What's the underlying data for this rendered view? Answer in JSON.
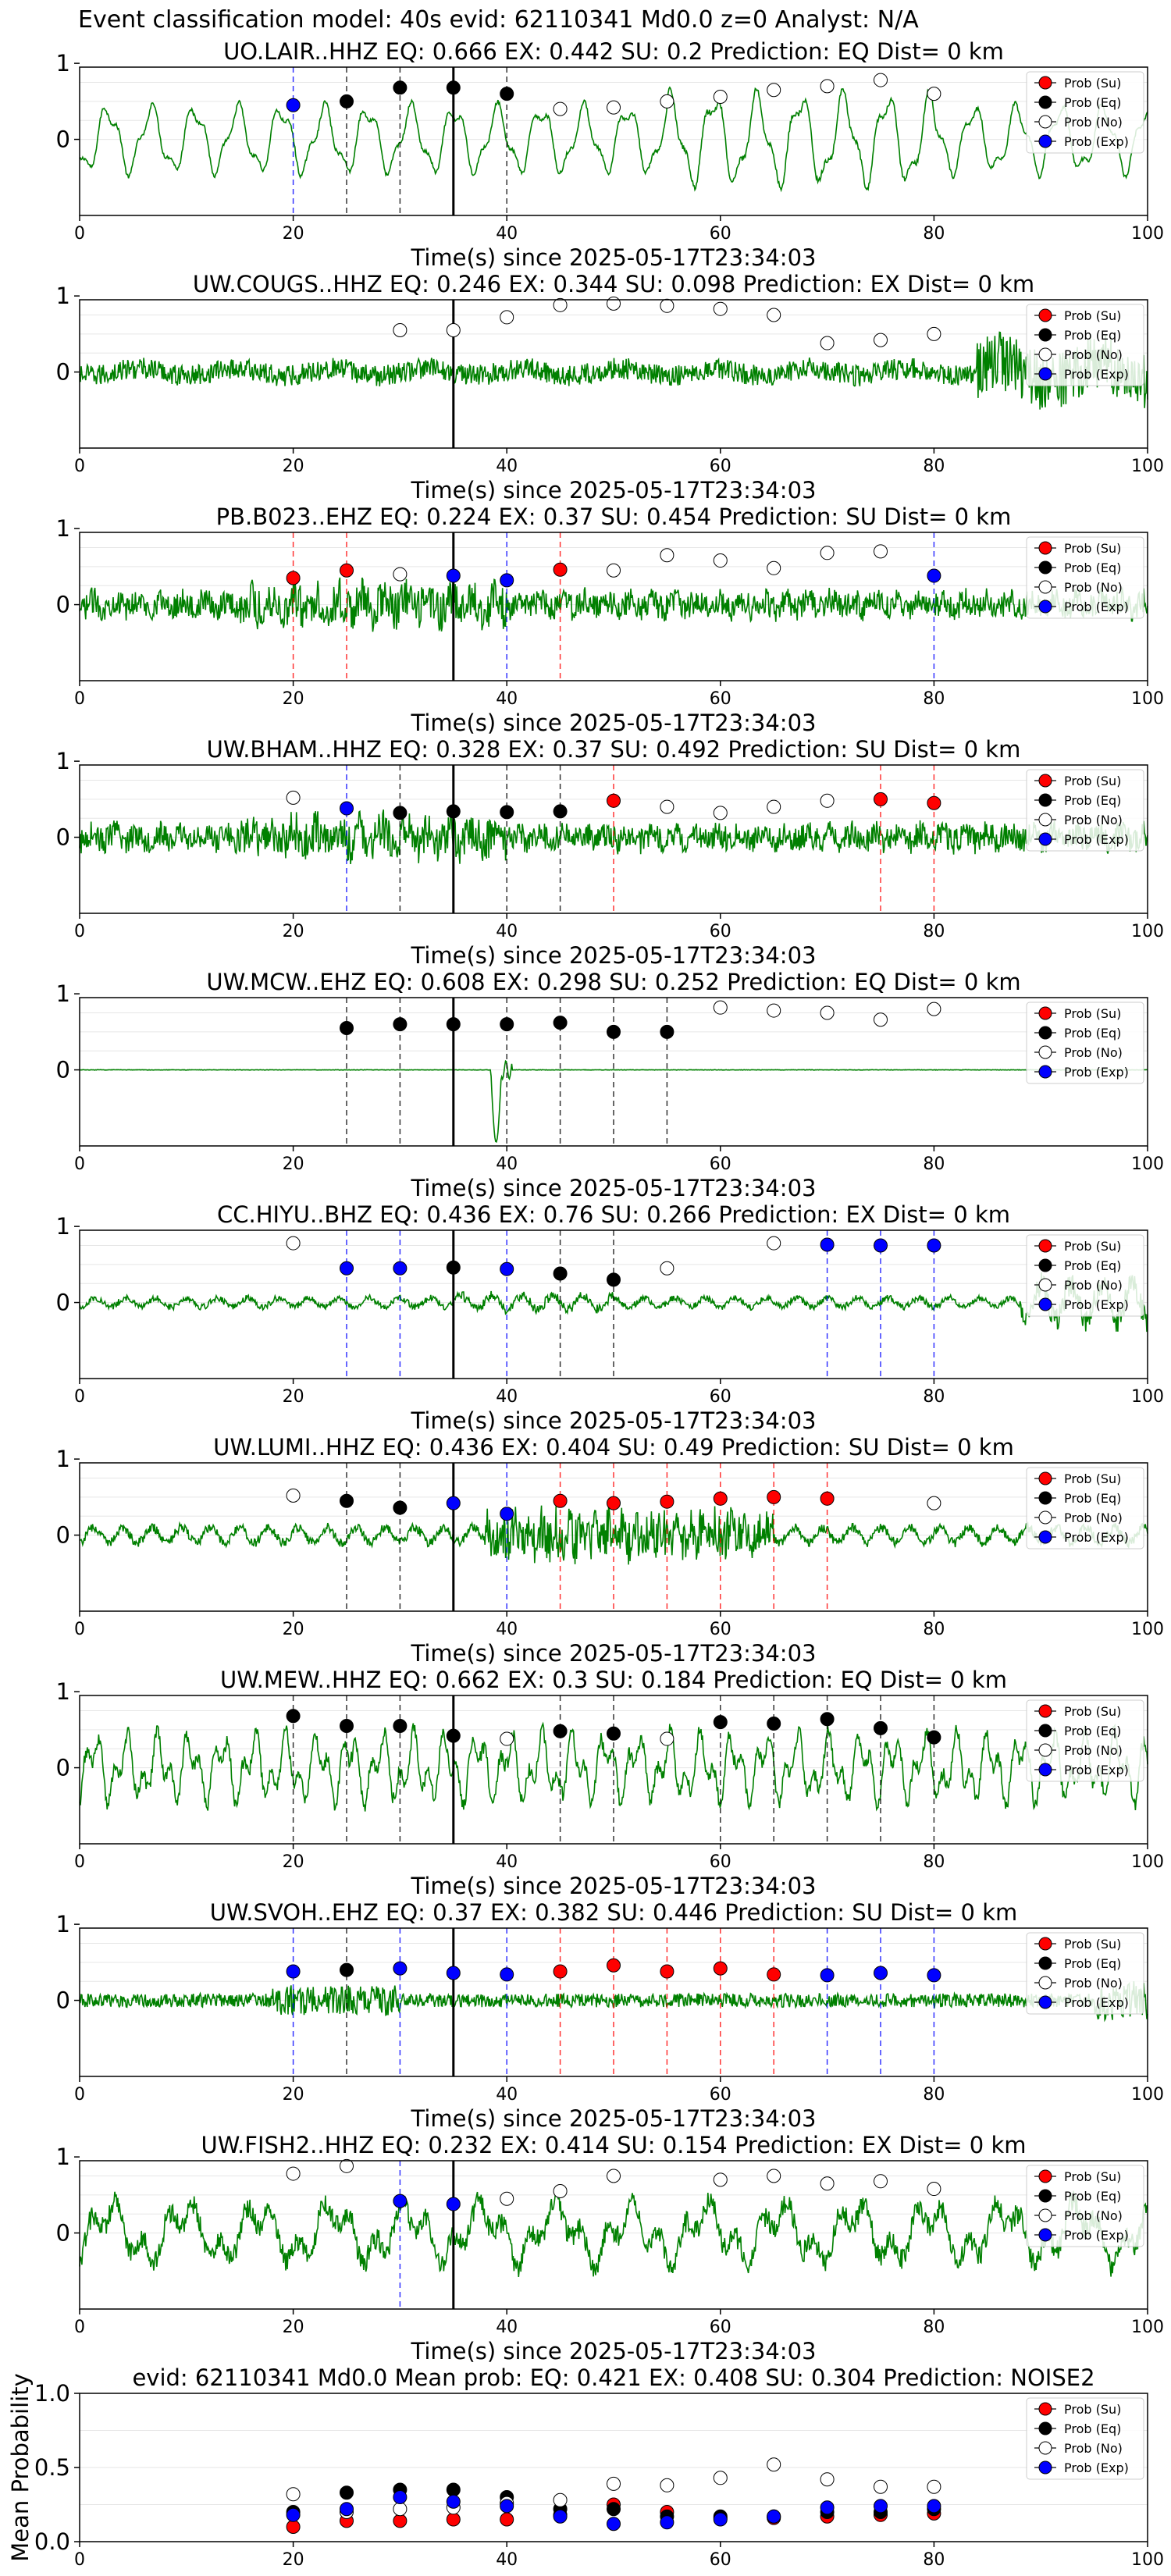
{
  "figure_title": "Event classification model: 40s evid: 62110341 Md0.0 z=0 Analyst: N/A",
  "legend_labels": [
    "Prob (Su)",
    "Prob (Eq)",
    "Prob (No)",
    "Prob (Exp)"
  ],
  "colors": {
    "waveform": "#008000",
    "Su": "#ff0000",
    "Eq": "#000000",
    "No": "#ffffff",
    "Exp": "#0000ff",
    "line_Su": "#ff0000",
    "line_Eq": "#000000",
    "line_Exp": "#0000ff"
  },
  "chart_data": [
    {
      "type": "line",
      "title": "UO.LAIR..HHZ   EQ: 0.666  EX: 0.442  SU: 0.2   Prediction: EQ    Dist= 0 km",
      "xlabel": "Time(s) since 2025-05-17T23:34:03",
      "xlim": [
        0,
        100
      ],
      "xticks": [
        0,
        20,
        40,
        60,
        80,
        100
      ],
      "yticks": [
        0,
        1
      ],
      "grid": true,
      "legend": "upper-right",
      "vertical_line_x": 35,
      "waveform_style": "smooth",
      "markers": [
        {
          "x": 20,
          "cls": "Exp",
          "y": 0.45
        },
        {
          "x": 25,
          "cls": "Eq",
          "y": 0.5
        },
        {
          "x": 30,
          "cls": "Eq",
          "y": 0.68
        },
        {
          "x": 35,
          "cls": "Eq",
          "y": 0.68
        },
        {
          "x": 40,
          "cls": "Eq",
          "y": 0.6
        },
        {
          "x": 45,
          "cls": "No",
          "y": 0.4
        },
        {
          "x": 50,
          "cls": "No",
          "y": 0.42
        },
        {
          "x": 55,
          "cls": "No",
          "y": 0.5
        },
        {
          "x": 60,
          "cls": "No",
          "y": 0.56
        },
        {
          "x": 65,
          "cls": "No",
          "y": 0.65
        },
        {
          "x": 70,
          "cls": "No",
          "y": 0.7
        },
        {
          "x": 75,
          "cls": "No",
          "y": 0.78
        },
        {
          "x": 80,
          "cls": "No",
          "y": 0.6
        }
      ]
    },
    {
      "type": "line",
      "title": "UW.COUGS..HHZ   EQ: 0.246  EX: 0.344  SU: 0.098   Prediction: EX    Dist= 0 km",
      "xlabel": "Time(s) since 2025-05-17T23:34:03",
      "xlim": [
        0,
        100
      ],
      "xticks": [
        0,
        20,
        40,
        60,
        80,
        100
      ],
      "yticks": [
        0,
        1
      ],
      "grid": true,
      "legend": "upper-right",
      "vertical_line_x": 35,
      "waveform_style": "noisy_burst_end",
      "markers": [
        {
          "x": 30,
          "cls": "No",
          "y": 0.55
        },
        {
          "x": 35,
          "cls": "No",
          "y": 0.55
        },
        {
          "x": 40,
          "cls": "No",
          "y": 0.72
        },
        {
          "x": 45,
          "cls": "No",
          "y": 0.88
        },
        {
          "x": 50,
          "cls": "No",
          "y": 0.9
        },
        {
          "x": 55,
          "cls": "No",
          "y": 0.87
        },
        {
          "x": 60,
          "cls": "No",
          "y": 0.83
        },
        {
          "x": 65,
          "cls": "No",
          "y": 0.75
        },
        {
          "x": 70,
          "cls": "No",
          "y": 0.38
        },
        {
          "x": 75,
          "cls": "No",
          "y": 0.42
        },
        {
          "x": 80,
          "cls": "No",
          "y": 0.5
        }
      ]
    },
    {
      "type": "line",
      "title": "PB.B023..EHZ   EQ: 0.224  EX: 0.37  SU: 0.454   Prediction: SU    Dist= 0 km",
      "xlabel": "Time(s) since 2025-05-17T23:34:03",
      "xlim": [
        0,
        100
      ],
      "xticks": [
        0,
        20,
        40,
        60,
        80,
        100
      ],
      "yticks": [
        0,
        1
      ],
      "grid": true,
      "legend": "upper-right",
      "vertical_line_x": 35,
      "waveform_style": "noisy",
      "markers": [
        {
          "x": 20,
          "cls": "Su",
          "y": 0.35
        },
        {
          "x": 25,
          "cls": "Su",
          "y": 0.45
        },
        {
          "x": 30,
          "cls": "No",
          "y": 0.4
        },
        {
          "x": 35,
          "cls": "Exp",
          "y": 0.38
        },
        {
          "x": 40,
          "cls": "Exp",
          "y": 0.32
        },
        {
          "x": 45,
          "cls": "Su",
          "y": 0.46
        },
        {
          "x": 50,
          "cls": "No",
          "y": 0.45
        },
        {
          "x": 55,
          "cls": "No",
          "y": 0.65
        },
        {
          "x": 60,
          "cls": "No",
          "y": 0.58
        },
        {
          "x": 65,
          "cls": "No",
          "y": 0.48
        },
        {
          "x": 70,
          "cls": "No",
          "y": 0.68
        },
        {
          "x": 75,
          "cls": "No",
          "y": 0.7
        },
        {
          "x": 80,
          "cls": "Exp",
          "y": 0.38
        }
      ]
    },
    {
      "type": "line",
      "title": "UW.BHAM..HHZ   EQ: 0.328  EX: 0.37  SU: 0.492   Prediction: SU    Dist= 0 km",
      "xlabel": "Time(s) since 2025-05-17T23:34:03",
      "xlim": [
        0,
        100
      ],
      "xticks": [
        0,
        20,
        40,
        60,
        80,
        100
      ],
      "yticks": [
        0,
        1
      ],
      "grid": true,
      "legend": "upper-right",
      "vertical_line_x": 35,
      "waveform_style": "noisy",
      "markers": [
        {
          "x": 20,
          "cls": "No",
          "y": 0.52
        },
        {
          "x": 25,
          "cls": "Exp",
          "y": 0.38
        },
        {
          "x": 30,
          "cls": "Eq",
          "y": 0.32
        },
        {
          "x": 35,
          "cls": "Eq",
          "y": 0.34
        },
        {
          "x": 40,
          "cls": "Eq",
          "y": 0.33
        },
        {
          "x": 45,
          "cls": "Eq",
          "y": 0.34
        },
        {
          "x": 50,
          "cls": "Su",
          "y": 0.48
        },
        {
          "x": 55,
          "cls": "No",
          "y": 0.4
        },
        {
          "x": 60,
          "cls": "No",
          "y": 0.32
        },
        {
          "x": 65,
          "cls": "No",
          "y": 0.4
        },
        {
          "x": 70,
          "cls": "No",
          "y": 0.48
        },
        {
          "x": 75,
          "cls": "Su",
          "y": 0.5
        },
        {
          "x": 80,
          "cls": "Su",
          "y": 0.45
        }
      ]
    },
    {
      "type": "line",
      "title": "UW.MCW..EHZ   EQ: 0.608  EX: 0.298  SU: 0.252   Prediction: EQ    Dist= 0 km",
      "xlabel": "Time(s) since 2025-05-17T23:34:03",
      "xlim": [
        0,
        100
      ],
      "xticks": [
        0,
        20,
        40,
        60,
        80,
        100
      ],
      "yticks": [
        0,
        1
      ],
      "grid": true,
      "legend": "upper-right",
      "vertical_line_x": 35,
      "waveform_style": "flat_spike",
      "markers": [
        {
          "x": 25,
          "cls": "Eq",
          "y": 0.55
        },
        {
          "x": 30,
          "cls": "Eq",
          "y": 0.6
        },
        {
          "x": 35,
          "cls": "Eq",
          "y": 0.6
        },
        {
          "x": 40,
          "cls": "Eq",
          "y": 0.6
        },
        {
          "x": 45,
          "cls": "Eq",
          "y": 0.62
        },
        {
          "x": 50,
          "cls": "Eq",
          "y": 0.5
        },
        {
          "x": 55,
          "cls": "Eq",
          "y": 0.5
        },
        {
          "x": 60,
          "cls": "No",
          "y": 0.82
        },
        {
          "x": 65,
          "cls": "No",
          "y": 0.78
        },
        {
          "x": 70,
          "cls": "No",
          "y": 0.75
        },
        {
          "x": 75,
          "cls": "No",
          "y": 0.66
        },
        {
          "x": 80,
          "cls": "No",
          "y": 0.8
        }
      ]
    },
    {
      "type": "line",
      "title": "CC.HIYU..BHZ   EQ: 0.436  EX: 0.76  SU: 0.266   Prediction: EX    Dist= 0 km",
      "xlabel": "Time(s) since 2025-05-17T23:34:03",
      "xlim": [
        0,
        100
      ],
      "xticks": [
        0,
        20,
        40,
        60,
        80,
        100
      ],
      "yticks": [
        0,
        1
      ],
      "grid": true,
      "legend": "upper-right",
      "vertical_line_x": 35,
      "waveform_style": "quiet_burst_end",
      "markers": [
        {
          "x": 20,
          "cls": "No",
          "y": 0.78
        },
        {
          "x": 25,
          "cls": "Exp",
          "y": 0.45
        },
        {
          "x": 30,
          "cls": "Exp",
          "y": 0.45
        },
        {
          "x": 35,
          "cls": "Eq",
          "y": 0.46
        },
        {
          "x": 40,
          "cls": "Exp",
          "y": 0.44
        },
        {
          "x": 45,
          "cls": "Eq",
          "y": 0.38
        },
        {
          "x": 50,
          "cls": "Eq",
          "y": 0.3
        },
        {
          "x": 55,
          "cls": "No",
          "y": 0.45
        },
        {
          "x": 65,
          "cls": "No",
          "y": 0.78
        },
        {
          "x": 70,
          "cls": "Exp",
          "y": 0.76
        },
        {
          "x": 75,
          "cls": "Exp",
          "y": 0.75
        },
        {
          "x": 80,
          "cls": "Exp",
          "y": 0.75
        }
      ]
    },
    {
      "type": "line",
      "title": "UW.LUMI..HHZ   EQ: 0.436  EX: 0.404  SU: 0.49   Prediction: SU    Dist= 0 km",
      "xlabel": "Time(s) since 2025-05-17T23:34:03",
      "xlim": [
        0,
        100
      ],
      "xticks": [
        0,
        20,
        40,
        60,
        80,
        100
      ],
      "yticks": [
        0,
        1
      ],
      "grid": true,
      "legend": "upper-right",
      "vertical_line_x": 35,
      "waveform_style": "burst_middle",
      "markers": [
        {
          "x": 20,
          "cls": "No",
          "y": 0.52
        },
        {
          "x": 25,
          "cls": "Eq",
          "y": 0.45
        },
        {
          "x": 30,
          "cls": "Eq",
          "y": 0.36
        },
        {
          "x": 35,
          "cls": "Exp",
          "y": 0.42
        },
        {
          "x": 40,
          "cls": "Exp",
          "y": 0.28
        },
        {
          "x": 45,
          "cls": "Su",
          "y": 0.45
        },
        {
          "x": 50,
          "cls": "Su",
          "y": 0.42
        },
        {
          "x": 55,
          "cls": "Su",
          "y": 0.44
        },
        {
          "x": 60,
          "cls": "Su",
          "y": 0.48
        },
        {
          "x": 65,
          "cls": "Su",
          "y": 0.5
        },
        {
          "x": 70,
          "cls": "Su",
          "y": 0.48
        },
        {
          "x": 80,
          "cls": "No",
          "y": 0.42
        }
      ]
    },
    {
      "type": "line",
      "title": "UW.MEW..HHZ   EQ: 0.662  EX: 0.3  SU: 0.184   Prediction: EQ    Dist= 0 km",
      "xlabel": "Time(s) since 2025-05-17T23:34:03",
      "xlim": [
        0,
        100
      ],
      "xticks": [
        0,
        20,
        40,
        60,
        80,
        100
      ],
      "yticks": [
        0,
        1
      ],
      "grid": true,
      "legend": "upper-right",
      "vertical_line_x": 35,
      "waveform_style": "medium_smooth",
      "markers": [
        {
          "x": 20,
          "cls": "Eq",
          "y": 0.68
        },
        {
          "x": 25,
          "cls": "Eq",
          "y": 0.55
        },
        {
          "x": 30,
          "cls": "Eq",
          "y": 0.55
        },
        {
          "x": 35,
          "cls": "Eq",
          "y": 0.42
        },
        {
          "x": 40,
          "cls": "No",
          "y": 0.38
        },
        {
          "x": 45,
          "cls": "Eq",
          "y": 0.48
        },
        {
          "x": 50,
          "cls": "Eq",
          "y": 0.45
        },
        {
          "x": 55,
          "cls": "No",
          "y": 0.38
        },
        {
          "x": 60,
          "cls": "Eq",
          "y": 0.6
        },
        {
          "x": 65,
          "cls": "Eq",
          "y": 0.58
        },
        {
          "x": 70,
          "cls": "Eq",
          "y": 0.64
        },
        {
          "x": 75,
          "cls": "Eq",
          "y": 0.52
        },
        {
          "x": 80,
          "cls": "Eq",
          "y": 0.4
        }
      ]
    },
    {
      "type": "line",
      "title": "UW.SVOH..EHZ   EQ: 0.37  EX: 0.382  SU: 0.446   Prediction: SU    Dist= 0 km",
      "xlabel": "Time(s) since 2025-05-17T23:34:03",
      "xlim": [
        0,
        100
      ],
      "xticks": [
        0,
        20,
        40,
        60,
        80,
        100
      ],
      "yticks": [
        0,
        1
      ],
      "grid": true,
      "legend": "upper-right",
      "vertical_line_x": 35,
      "waveform_style": "noisy_thin",
      "markers": [
        {
          "x": 20,
          "cls": "Exp",
          "y": 0.38
        },
        {
          "x": 25,
          "cls": "Eq",
          "y": 0.4
        },
        {
          "x": 30,
          "cls": "Exp",
          "y": 0.42
        },
        {
          "x": 35,
          "cls": "Exp",
          "y": 0.36
        },
        {
          "x": 40,
          "cls": "Exp",
          "y": 0.34
        },
        {
          "x": 45,
          "cls": "Su",
          "y": 0.38
        },
        {
          "x": 50,
          "cls": "Su",
          "y": 0.46
        },
        {
          "x": 55,
          "cls": "Su",
          "y": 0.38
        },
        {
          "x": 60,
          "cls": "Su",
          "y": 0.42
        },
        {
          "x": 65,
          "cls": "Su",
          "y": 0.34
        },
        {
          "x": 70,
          "cls": "Exp",
          "y": 0.33
        },
        {
          "x": 75,
          "cls": "Exp",
          "y": 0.36
        },
        {
          "x": 80,
          "cls": "Exp",
          "y": 0.33
        }
      ]
    },
    {
      "type": "line",
      "title": "UW.FISH2..HHZ   EQ: 0.232  EX: 0.414  SU: 0.154   Prediction: EX    Dist= 0 km",
      "xlabel": "Time(s) since 2025-05-17T23:34:03",
      "xlim": [
        0,
        100
      ],
      "xticks": [
        0,
        20,
        40,
        60,
        80,
        100
      ],
      "yticks": [
        0,
        1
      ],
      "grid": true,
      "legend": "upper-right",
      "vertical_line_x": 35,
      "waveform_style": "rough",
      "markers": [
        {
          "x": 20,
          "cls": "No",
          "y": 0.78
        },
        {
          "x": 25,
          "cls": "No",
          "y": 0.88
        },
        {
          "x": 30,
          "cls": "Exp",
          "y": 0.42
        },
        {
          "x": 35,
          "cls": "Exp",
          "y": 0.38
        },
        {
          "x": 40,
          "cls": "No",
          "y": 0.45
        },
        {
          "x": 45,
          "cls": "No",
          "y": 0.55
        },
        {
          "x": 50,
          "cls": "No",
          "y": 0.75
        },
        {
          "x": 60,
          "cls": "No",
          "y": 0.7
        },
        {
          "x": 65,
          "cls": "No",
          "y": 0.75
        },
        {
          "x": 70,
          "cls": "No",
          "y": 0.65
        },
        {
          "x": 75,
          "cls": "No",
          "y": 0.68
        },
        {
          "x": 80,
          "cls": "No",
          "y": 0.58
        }
      ]
    },
    {
      "type": "scatter",
      "title": "evid: 62110341  Md0.0   Mean prob:   EQ: 0.421  EX: 0.408  SU: 0.304   Prediction: NOISE2",
      "ylabel": "Mean Probability",
      "xlim": [
        0,
        100
      ],
      "ylim": [
        0,
        1
      ],
      "xticks": [
        0,
        20,
        40,
        60,
        80,
        100
      ],
      "yticks": [
        0.0,
        0.5,
        1.0
      ],
      "ytick_labels": [
        "0.0",
        "0.5",
        "1.0"
      ],
      "grid": true,
      "legend": "upper-right",
      "x": [
        20,
        25,
        30,
        35,
        40,
        45,
        50,
        55,
        60,
        65,
        70,
        75,
        80
      ],
      "series": [
        {
          "name": "Prob (Su)",
          "cls": "Su",
          "values": [
            0.1,
            0.14,
            0.14,
            0.15,
            0.15,
            0.18,
            0.25,
            0.2,
            0.16,
            0.16,
            0.17,
            0.18,
            0.19
          ]
        },
        {
          "name": "Prob (Eq)",
          "cls": "Eq",
          "values": [
            0.2,
            0.33,
            0.35,
            0.35,
            0.3,
            0.22,
            0.22,
            0.17,
            0.17,
            0.17,
            0.2,
            0.2,
            0.22
          ]
        },
        {
          "name": "Prob (No)",
          "cls": "No",
          "values": [
            0.32,
            0.2,
            0.22,
            0.23,
            0.26,
            0.28,
            0.39,
            0.38,
            0.43,
            0.52,
            0.42,
            0.37,
            0.37
          ]
        },
        {
          "name": "Prob (Exp)",
          "cls": "Exp",
          "values": [
            0.18,
            0.22,
            0.3,
            0.27,
            0.24,
            0.17,
            0.12,
            0.13,
            0.15,
            0.17,
            0.23,
            0.24,
            0.24
          ]
        }
      ]
    }
  ]
}
